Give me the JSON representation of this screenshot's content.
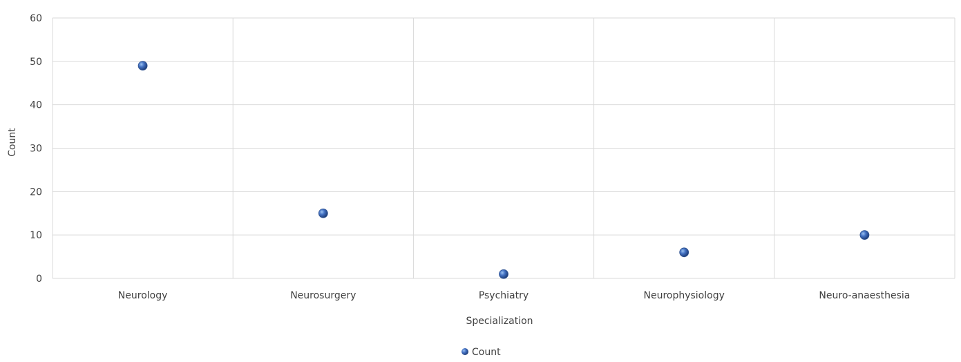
{
  "chart_data": {
    "type": "scatter",
    "categories": [
      "Neurology",
      "Neurosurgery",
      "Psychiatry",
      "Neurophysiology",
      "Neuro-anaesthesia"
    ],
    "series": [
      {
        "name": "Count",
        "values": [
          49,
          15,
          1,
          6,
          10
        ]
      }
    ],
    "xlabel": "Specialization",
    "ylabel": "Count",
    "ylim": [
      0,
      60
    ],
    "yticks": [
      0,
      10,
      20,
      30,
      40,
      50,
      60
    ],
    "grid": true,
    "legend": "bottom",
    "colors": {
      "marker": "#4472c4",
      "marker_dark": "#2f528f",
      "grid": "#d9d9d9",
      "text": "#404040"
    }
  }
}
